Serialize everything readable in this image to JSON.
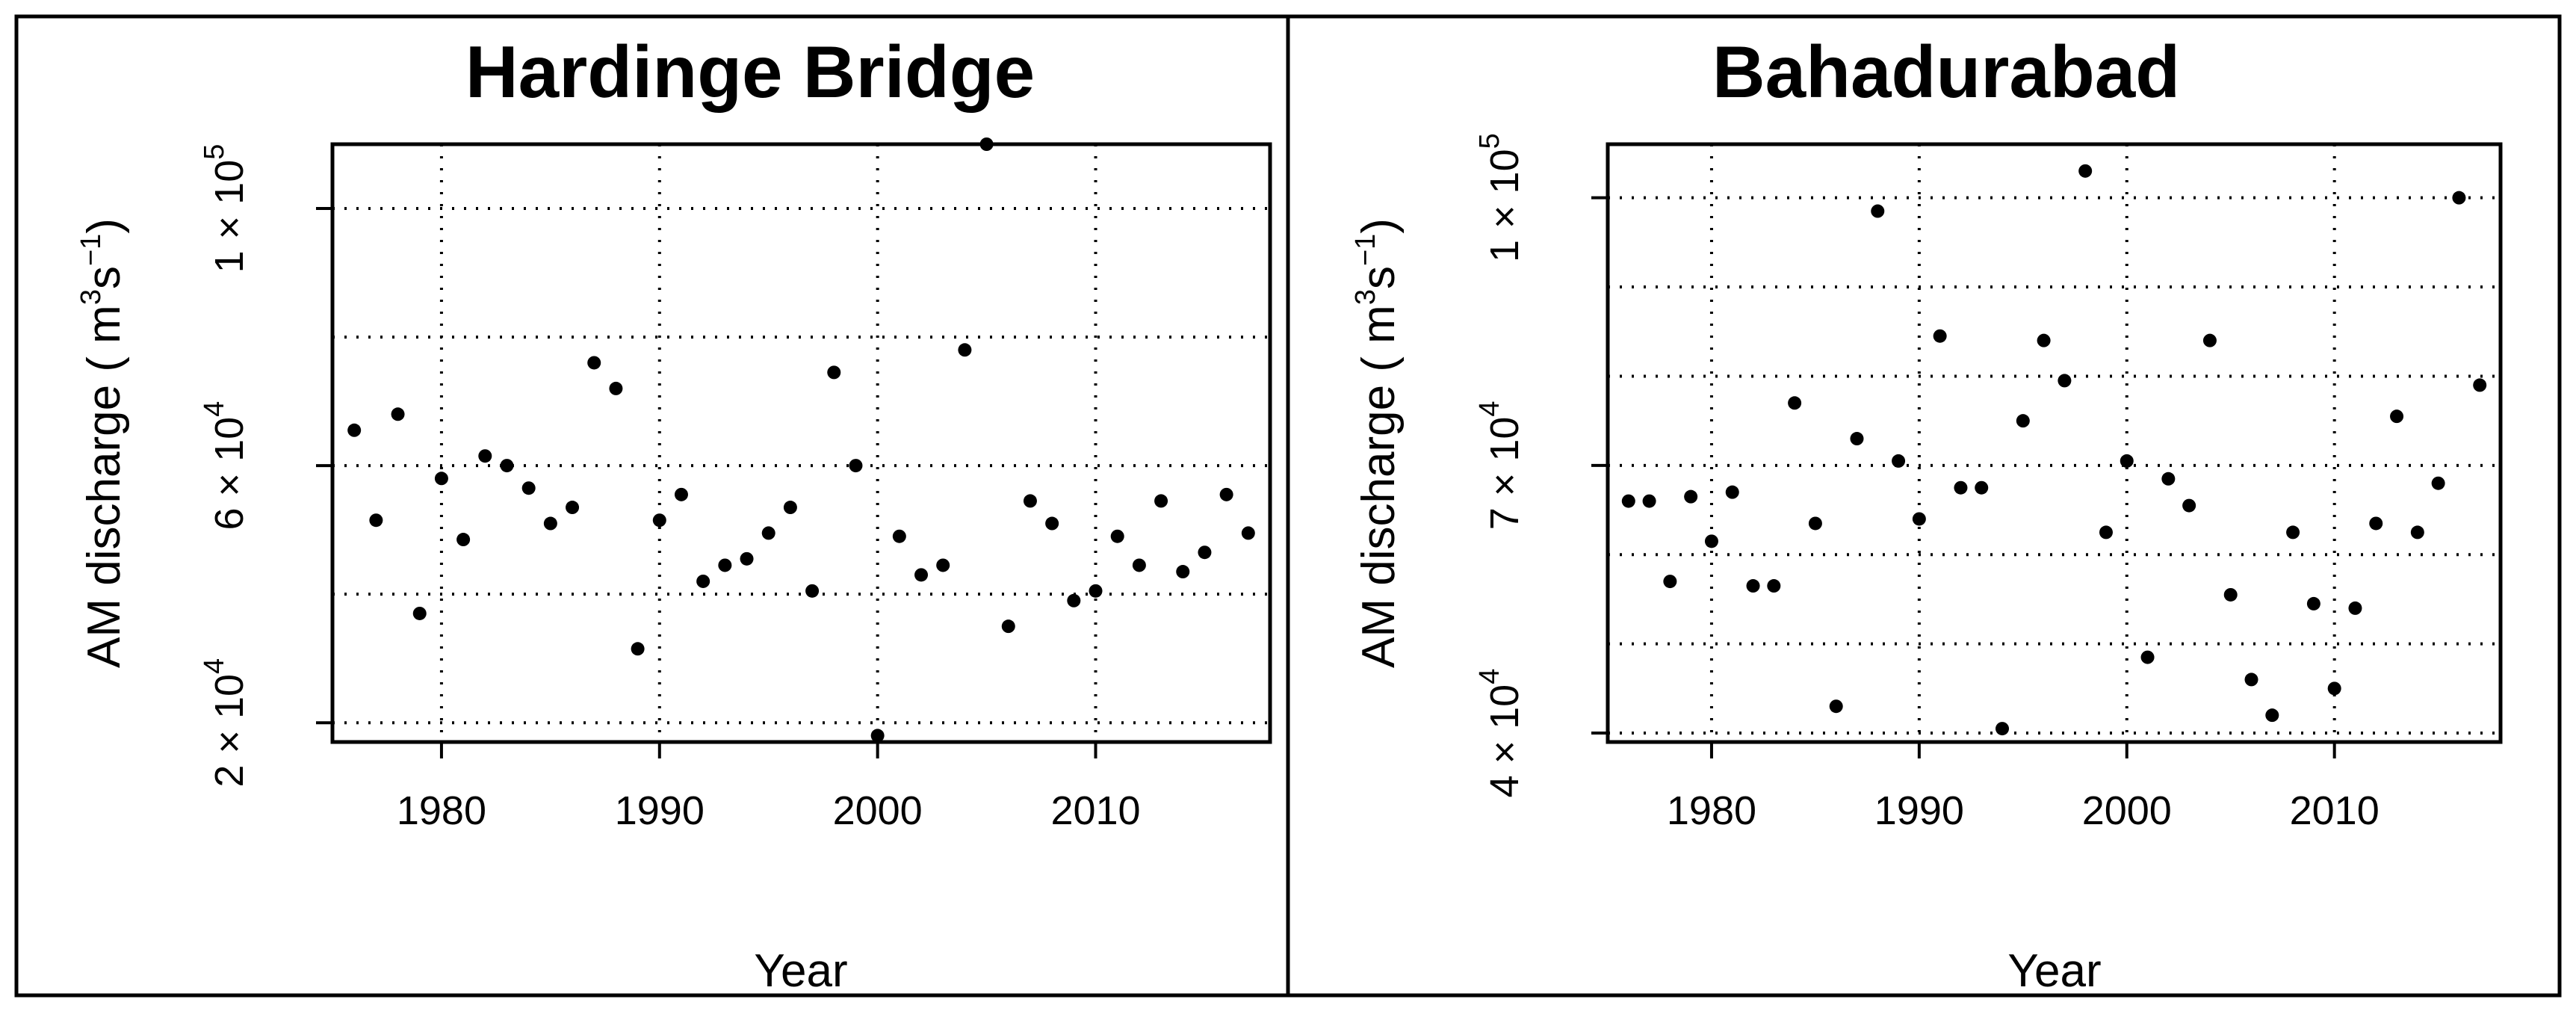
{
  "chart_data": [
    {
      "type": "scatter",
      "title": "Hardinge Bridge",
      "xlabel": "Year",
      "ylabel": "AM discharge ( m³s⁻¹)",
      "ylabel_parts": {
        "main": "AM discharge ( m",
        "sup1": "3",
        "mid": "s",
        "sup2": "−1",
        "end": ")"
      },
      "xlim": [
        1975,
        2018
      ],
      "ylim": [
        17000,
        110000
      ],
      "xticks": [
        1980,
        1990,
        2000,
        2010
      ],
      "xtick_labels": [
        "1980",
        "1990",
        "2000",
        "2010"
      ],
      "yticks": [
        {
          "value": 20000,
          "mantissa": "2",
          "times": "×",
          "base": "10",
          "exp": "4"
        },
        {
          "value": 60000,
          "mantissa": "6",
          "times": "×",
          "base": "10",
          "exp": "4"
        },
        {
          "value": 100000,
          "mantissa": "1",
          "times": "×",
          "base": "10",
          "exp": "5"
        }
      ],
      "grid_y": [
        20000,
        40000,
        60000,
        80000,
        100000
      ],
      "grid_x": [
        1980,
        1990,
        2000,
        2010
      ],
      "grid": true,
      "x": [
        1976,
        1977,
        1978,
        1979,
        1980,
        1981,
        1982,
        1983,
        1984,
        1985,
        1986,
        1987,
        1988,
        1989,
        1990,
        1991,
        1992,
        1993,
        1994,
        1995,
        1996,
        1997,
        1998,
        1999,
        2000,
        2001,
        2002,
        2003,
        2004,
        2005,
        2006,
        2007,
        2008,
        2009,
        2010,
        2011,
        2012,
        2013,
        2014,
        2015,
        2016,
        2017
      ],
      "y": [
        65500,
        51500,
        68000,
        37000,
        58000,
        48500,
        61500,
        60000,
        56500,
        51000,
        53500,
        76000,
        72000,
        31500,
        51500,
        55500,
        42000,
        44500,
        45500,
        49500,
        53500,
        40500,
        74500,
        60000,
        18000,
        49000,
        43000,
        44500,
        78000,
        110000,
        35000,
        54500,
        51000,
        39000,
        40500,
        49000,
        44500,
        54500,
        43500,
        46500,
        55500,
        49500
      ]
    },
    {
      "type": "scatter",
      "title": "Bahadurabad",
      "xlabel": "Year",
      "ylabel": "AM discharge ( m³s⁻¹)",
      "ylabel_parts": {
        "main": "AM discharge ( m",
        "sup1": "3",
        "mid": "s",
        "sup2": "−1",
        "end": ")"
      },
      "xlim": [
        1975,
        2018
      ],
      "ylim": [
        39000,
        106000
      ],
      "xticks": [
        1980,
        1990,
        2000,
        2010
      ],
      "xtick_labels": [
        "1980",
        "1990",
        "2000",
        "2010"
      ],
      "yticks": [
        {
          "value": 40000,
          "mantissa": "4",
          "times": "×",
          "base": "10",
          "exp": "4"
        },
        {
          "value": 70000,
          "mantissa": "7",
          "times": "×",
          "base": "10",
          "exp": "4"
        },
        {
          "value": 100000,
          "mantissa": "1",
          "times": "×",
          "base": "10",
          "exp": "5"
        }
      ],
      "grid_y": [
        40000,
        50000,
        60000,
        70000,
        80000,
        90000,
        100000
      ],
      "grid_x": [
        1980,
        1990,
        2000,
        2010
      ],
      "grid": true,
      "x": [
        1976,
        1977,
        1978,
        1979,
        1980,
        1981,
        1982,
        1983,
        1984,
        1985,
        1986,
        1987,
        1988,
        1989,
        1990,
        1991,
        1992,
        1993,
        1994,
        1995,
        1996,
        1997,
        1998,
        1999,
        2000,
        2001,
        2002,
        2003,
        2004,
        2005,
        2006,
        2007,
        2008,
        2009,
        2010,
        2011,
        2012,
        2013,
        2014,
        2015,
        2016,
        2017
      ],
      "y": [
        66000,
        66000,
        57000,
        66500,
        61500,
        67000,
        56500,
        56500,
        77000,
        63500,
        43000,
        73000,
        98500,
        70500,
        64000,
        84500,
        67500,
        67500,
        40500,
        75000,
        84000,
        79500,
        103000,
        62500,
        70500,
        48500,
        68500,
        65500,
        84000,
        55500,
        46000,
        42000,
        62500,
        54500,
        45000,
        54000,
        63500,
        75500,
        62500,
        68000,
        100000,
        79000
      ]
    }
  ]
}
